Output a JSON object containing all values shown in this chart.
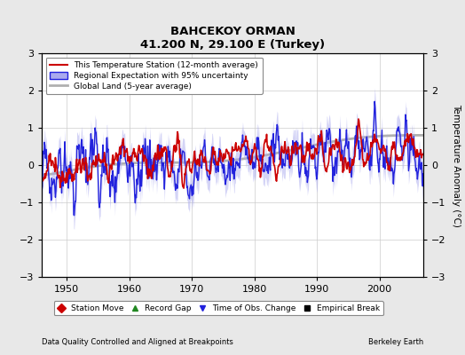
{
  "title": "BAHCEKOY ORMAN",
  "subtitle": "41.200 N, 29.100 E (Turkey)",
  "xlabel_left": "Data Quality Controlled and Aligned at Breakpoints",
  "xlabel_right": "Berkeley Earth",
  "ylabel": "Temperature Anomaly (°C)",
  "xlim": [
    1946,
    2007
  ],
  "ylim": [
    -3,
    3
  ],
  "yticks": [
    -3,
    -2,
    -1,
    0,
    1,
    2,
    3
  ],
  "xticks": [
    1950,
    1960,
    1970,
    1980,
    1990,
    2000
  ],
  "station_color": "#cc0000",
  "regional_color": "#2222dd",
  "regional_fill": "#aaaaee",
  "global_color": "#b0b0b0",
  "background_color": "#e8e8e8",
  "plot_bg_color": "#ffffff",
  "grid_color": "#cccccc",
  "station_lw": 1.2,
  "regional_lw": 1.0,
  "global_lw": 2.0,
  "seed": 17
}
